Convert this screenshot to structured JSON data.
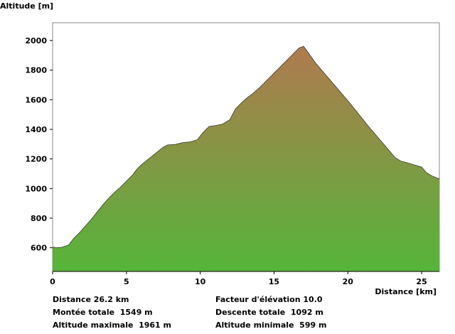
{
  "chart_data": {
    "type": "area",
    "xlabel": "Distance [km]",
    "ylabel": "Altitude [m]",
    "xlim": [
      0,
      26.2
    ],
    "ylim": [
      440,
      2120
    ],
    "xticks": [
      0,
      5,
      10,
      15,
      20,
      25
    ],
    "yticks": [
      600,
      800,
      1000,
      1200,
      1400,
      1600,
      1800,
      2000
    ],
    "grid": false,
    "fill_gradient": {
      "top": "#b07a4e",
      "bottom": "#55b53a"
    },
    "x": [
      0,
      0.3,
      0.6,
      0.9,
      1.1,
      1.4,
      1.8,
      2.2,
      2.6,
      3.0,
      3.4,
      3.8,
      4.2,
      4.6,
      5.0,
      5.4,
      5.7,
      6.0,
      6.5,
      7.0,
      7.5,
      7.8,
      8.3,
      8.8,
      9.3,
      9.8,
      10.2,
      10.6,
      11.0,
      11.5,
      12.0,
      12.4,
      12.8,
      13.2,
      13.6,
      14.0,
      14.5,
      15.0,
      15.5,
      16.0,
      16.4,
      16.7,
      17.0,
      17.3,
      17.8,
      18.4,
      19.0,
      19.6,
      20.2,
      20.8,
      21.4,
      22.0,
      22.6,
      23.2,
      23.6,
      24.0,
      24.5,
      25.0,
      25.3,
      25.7,
      26.2
    ],
    "y": [
      605,
      600,
      603,
      612,
      620,
      660,
      700,
      745,
      790,
      840,
      890,
      935,
      975,
      1010,
      1050,
      1090,
      1130,
      1160,
      1200,
      1240,
      1280,
      1295,
      1298,
      1310,
      1315,
      1330,
      1380,
      1420,
      1425,
      1435,
      1465,
      1540,
      1580,
      1615,
      1645,
      1680,
      1730,
      1780,
      1830,
      1880,
      1920,
      1950,
      1961,
      1920,
      1850,
      1780,
      1710,
      1640,
      1570,
      1495,
      1420,
      1350,
      1280,
      1210,
      1185,
      1175,
      1160,
      1145,
      1110,
      1085,
      1065
    ]
  },
  "stats": {
    "distance": "Distance 26.2 km",
    "elevation_factor": "Facteur d'élévation 10.0",
    "total_ascent": "Montée totale  1549 m",
    "total_descent": "Descente totale  1092 m",
    "max_altitude": "Altitude maximale  1961 m",
    "min_altitude": "Altitude minimale  599 m"
  }
}
